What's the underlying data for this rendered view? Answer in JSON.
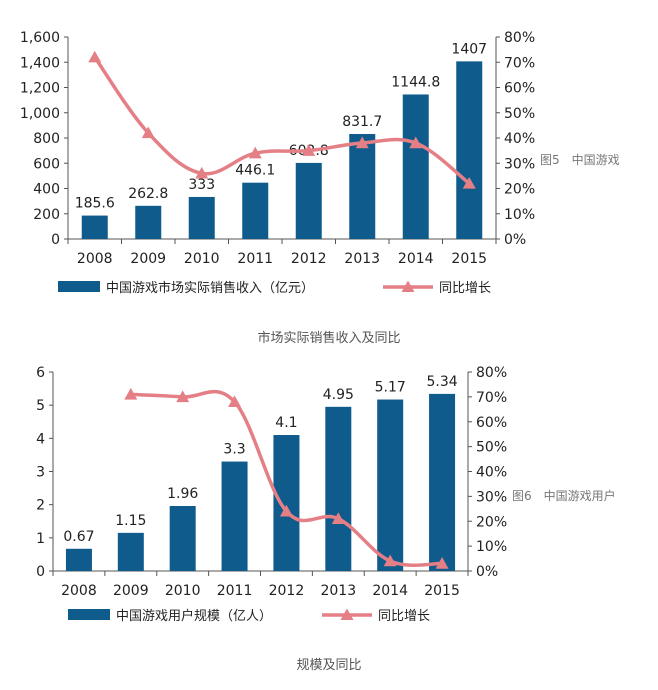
{
  "colors": {
    "bar": "#0f5b8c",
    "line": "#e57f86",
    "axis": "#555555"
  },
  "captions": {
    "chart1_side": "图5　中国游戏",
    "chart1_bottom": "市场实际销售收入及同比",
    "chart2_side": "图6　中国游戏用户",
    "chart2_bottom": "规模及同比"
  },
  "chart_data": [
    {
      "type": "bar",
      "title": "",
      "categories": [
        "2008",
        "2009",
        "2010",
        "2011",
        "2012",
        "2013",
        "2014",
        "2015"
      ],
      "series": [
        {
          "name": "中国游戏市场实际销售收入（亿元）",
          "type": "bar",
          "axis": "left",
          "values": [
            185.6,
            262.8,
            333,
            446.1,
            602.8,
            831.7,
            1144.8,
            1407
          ],
          "labels": [
            "185.6",
            "262.8",
            "333",
            "446.1",
            "602.8",
            "831.7",
            "1144.8",
            "1407"
          ]
        },
        {
          "name": "同比增长",
          "type": "line",
          "axis": "right",
          "values": [
            72,
            42,
            26,
            34,
            35,
            38,
            38,
            22
          ]
        }
      ],
      "ylim": [
        0,
        1600
      ],
      "yticks": [
        "0",
        "200",
        "400",
        "600",
        "800",
        "1,000",
        "1,200",
        "1,400",
        "1,600"
      ],
      "y2lim": [
        0,
        80
      ],
      "y2ticks": [
        "0%",
        "10%",
        "20%",
        "30%",
        "40%",
        "50%",
        "60%",
        "70%",
        "80%"
      ],
      "legend": [
        "中国游戏市场实际销售收入（亿元）",
        "同比增长"
      ],
      "legend_position": "bottom"
    },
    {
      "type": "bar",
      "title": "",
      "categories": [
        "2008",
        "2009",
        "2010",
        "2011",
        "2012",
        "2013",
        "2014",
        "2015"
      ],
      "series": [
        {
          "name": "中国游戏用户规模（亿人）",
          "type": "bar",
          "axis": "left",
          "values": [
            0.67,
            1.15,
            1.96,
            3.3,
            4.1,
            4.95,
            5.17,
            5.34
          ],
          "labels": [
            "0.67",
            "1.15",
            "1.96",
            "3.3",
            "4.1",
            "4.95",
            "5.17",
            "5.34"
          ]
        },
        {
          "name": "同比增长",
          "type": "line",
          "axis": "right",
          "values": [
            null,
            71,
            70,
            68,
            24,
            21,
            4,
            3
          ]
        }
      ],
      "ylim": [
        0,
        6
      ],
      "yticks": [
        "0",
        "1",
        "2",
        "3",
        "4",
        "5",
        "6"
      ],
      "y2lim": [
        0,
        80
      ],
      "y2ticks": [
        "0%",
        "10%",
        "20%",
        "30%",
        "40%",
        "50%",
        "60%",
        "70%",
        "80%"
      ],
      "legend": [
        "中国游戏用户规模（亿人）",
        "同比增长"
      ],
      "legend_position": "bottom"
    }
  ]
}
